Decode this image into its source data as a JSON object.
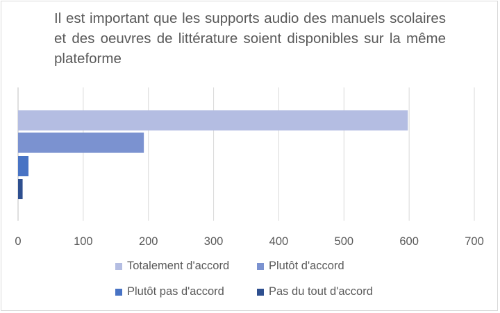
{
  "chart_data": {
    "type": "bar",
    "orientation": "horizontal",
    "title": "Il est important que les supports audio des manuels scolaires et des oeuvres de littérature soient disponibles sur la même plateforme",
    "xlim": [
      0,
      700
    ],
    "x_ticks": [
      "0",
      "100",
      "200",
      "300",
      "400",
      "500",
      "600",
      "700"
    ],
    "grid": true,
    "legend_position": "bottom",
    "series": [
      {
        "name": "Totalement d'accord",
        "values": [
          598
        ],
        "color": "#b4bde2"
      },
      {
        "name": "Plutôt d'accord",
        "values": [
          193
        ],
        "color": "#7b92d0"
      },
      {
        "name": "Plutôt pas d'accord",
        "values": [
          16
        ],
        "color": "#4873c4"
      },
      {
        "name": "Pas du tout d'accord",
        "values": [
          7
        ],
        "color": "#2e4f8f"
      }
    ]
  }
}
